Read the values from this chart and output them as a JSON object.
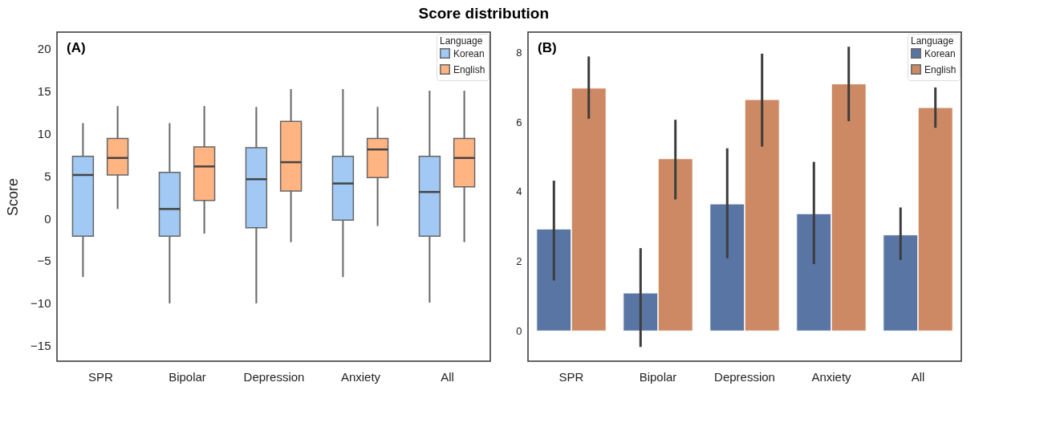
{
  "chart_data": [
    {
      "type": "box",
      "title": "Score distribution",
      "ylabel": "Score",
      "annotations": [
        "(A)"
      ],
      "legend": "top right",
      "legend_title": "Language",
      "categories": [
        "SPR",
        "Bipolar",
        "Depression",
        "Anxiety",
        "All"
      ],
      "ylim": [
        -16.8,
        21.9
      ],
      "yticks": [
        -15,
        -10,
        -5,
        0,
        5,
        10,
        15,
        20
      ],
      "series": [
        {
          "name": "Korean",
          "color": "#a1c9f4",
          "boxes": [
            {
              "low": -6.9,
              "q1": -2.1,
              "median": 5.1,
              "q3": 7.3,
              "high": 11.2
            },
            {
              "low": -10,
              "q1": -2.1,
              "median": 1.1,
              "q3": 5.4,
              "high": 11.2
            },
            {
              "low": -10,
              "q1": -1.1,
              "median": 4.6,
              "q3": 8.3,
              "high": 13.1
            },
            {
              "low": -6.9,
              "q1": -0.2,
              "median": 4.1,
              "q3": 7.3,
              "high": 15.2
            },
            {
              "low": -9.9,
              "q1": -2.1,
              "median": 3.1,
              "q3": 7.3,
              "high": 15
            }
          ]
        },
        {
          "name": "English",
          "color": "#ffb482",
          "boxes": [
            {
              "low": 1.1,
              "q1": 5.1,
              "median": 7.1,
              "q3": 9.4,
              "high": 13.2
            },
            {
              "low": -1.8,
              "q1": 2.1,
              "median": 6.1,
              "q3": 8.4,
              "high": 13.2
            },
            {
              "low": -2.8,
              "q1": 3.2,
              "median": 6.6,
              "q3": 11.4,
              "high": 15.2
            },
            {
              "low": -0.9,
              "q1": 4.8,
              "median": 8.1,
              "q3": 9.4,
              "high": 13.1
            },
            {
              "low": -2.8,
              "q1": 3.7,
              "median": 7.1,
              "q3": 9.4,
              "high": 15
            }
          ]
        }
      ]
    },
    {
      "type": "bar",
      "annotations": [
        "(B)"
      ],
      "legend": "top right",
      "legend_title": "Language",
      "categories": [
        "SPR",
        "Bipolar",
        "Depression",
        "Anxiety",
        "All"
      ],
      "ylim": [
        -0.87,
        8.59
      ],
      "yticks": [
        0,
        2,
        4,
        6,
        8
      ],
      "series": [
        {
          "name": "Korean",
          "color": "#5975a4",
          "values": [
            2.93,
            1.09,
            3.65,
            3.37,
            2.76
          ],
          "errors": [
            [
              1.45,
              4.32
            ],
            [
              -0.46,
              2.38
            ],
            [
              2.09,
              5.25
            ],
            [
              1.92,
              4.86
            ],
            [
              2.04,
              3.55
            ]
          ]
        },
        {
          "name": "English",
          "color": "#cc8963",
          "values": [
            6.98,
            4.95,
            6.65,
            7.1,
            6.42
          ],
          "errors": [
            [
              6.1,
              7.89
            ],
            [
              3.78,
              6.07
            ],
            [
              5.3,
              7.97
            ],
            [
              6.03,
              8.17
            ],
            [
              5.84,
              7.0
            ]
          ]
        }
      ]
    }
  ]
}
